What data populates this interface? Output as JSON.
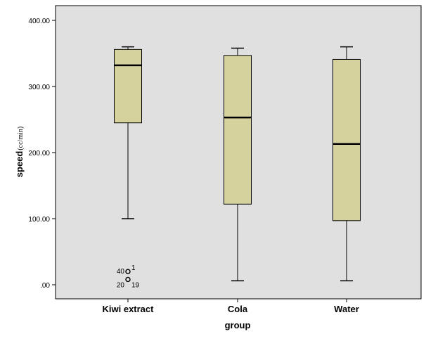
{
  "chart_data": {
    "type": "boxplot",
    "xlabel": "group",
    "ylabel": "speed",
    "ylabel_unit": "(cc/min)",
    "ylim": [
      -20,
      420
    ],
    "y_ticks": [
      0,
      100,
      200,
      300,
      400
    ],
    "y_tick_labels": [
      ".00",
      "100.00",
      "200.00",
      "300.00",
      "400.00"
    ],
    "grid": false,
    "box_color": "#d5d29e",
    "plot_background": "#e0e0e0",
    "categories": [
      "Kiwi extract",
      "Cola",
      "Water"
    ],
    "boxes": [
      {
        "category": "Kiwi extract",
        "whisker_low": 100,
        "q1": 245,
        "median": 332,
        "q3": 356,
        "whisker_high": 360,
        "outliers": [
          {
            "labels": [
              "40",
              "1"
            ],
            "value": 20
          },
          {
            "labels": [
              "20",
              "19"
            ],
            "value": 8
          }
        ]
      },
      {
        "category": "Cola",
        "whisker_low": 6,
        "q1": 122,
        "median": 253,
        "q3": 347,
        "whisker_high": 358,
        "outliers": []
      },
      {
        "category": "Water",
        "whisker_low": 6,
        "q1": 97,
        "median": 213,
        "q3": 341,
        "whisker_high": 360,
        "outliers": []
      }
    ]
  }
}
